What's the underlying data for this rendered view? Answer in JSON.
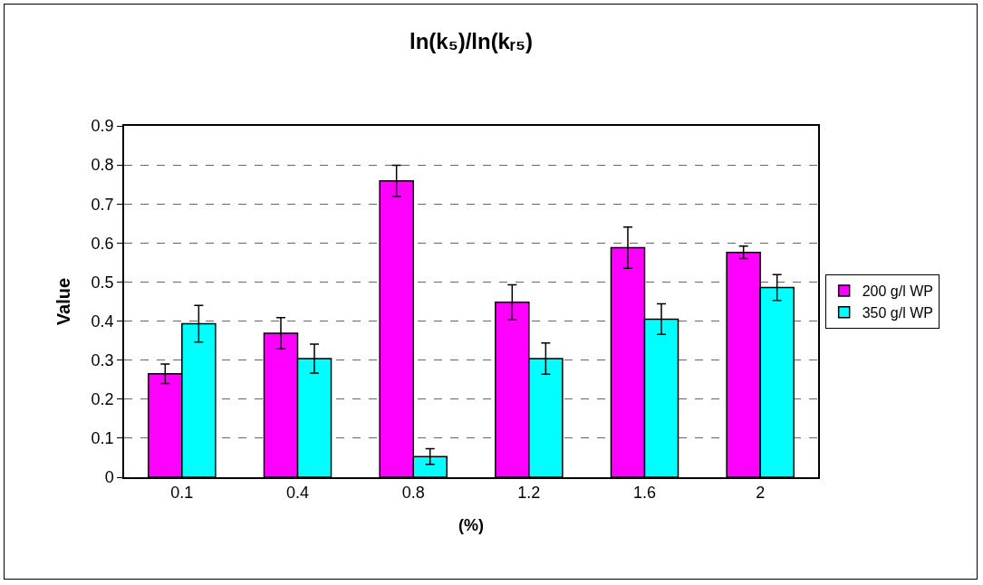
{
  "chart_data": {
    "type": "bar",
    "title": "ln(k₅)/ln(kᵣ₅)",
    "xlabel": "(%)",
    "ylabel": "Value",
    "categories": [
      "0.1",
      "0.4",
      "0.8",
      "1.2",
      "1.6",
      "2"
    ],
    "series": [
      {
        "name": "200 g/l WP",
        "color": "#ff00ff",
        "values": [
          0.265,
          0.369,
          0.759,
          0.448,
          0.588,
          0.576
        ],
        "errors": [
          0.025,
          0.04,
          0.04,
          0.045,
          0.053,
          0.016
        ]
      },
      {
        "name": "350 g/l WP",
        "color": "#00ffff",
        "values": [
          0.393,
          0.304,
          0.053,
          0.304,
          0.405,
          0.486
        ],
        "errors": [
          0.047,
          0.037,
          0.02,
          0.04,
          0.039,
          0.033
        ]
      }
    ],
    "ylim": [
      0,
      0.9
    ],
    "yticks": [
      0,
      0.1,
      0.2,
      0.3,
      0.4,
      0.5,
      0.6,
      0.7,
      0.8,
      0.9
    ],
    "grid": "y",
    "legend": "right"
  }
}
